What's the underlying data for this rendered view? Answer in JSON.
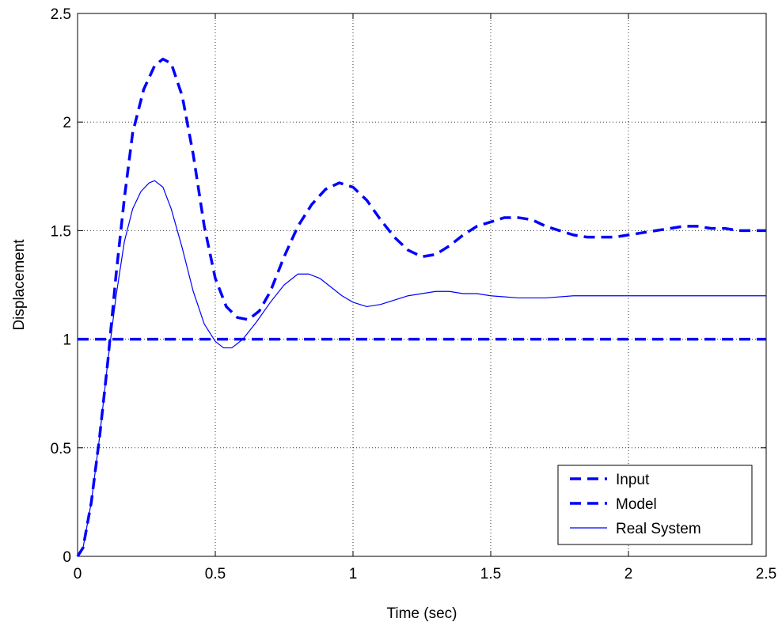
{
  "chart_data": {
    "type": "line",
    "title": "",
    "xlabel": "Time (sec)",
    "ylabel": "Displacement",
    "xlim": [
      0,
      2.5
    ],
    "ylim": [
      0,
      2.5
    ],
    "xticks": [
      0,
      0.5,
      1,
      1.5,
      2,
      2.5
    ],
    "yticks": [
      0,
      0.5,
      1,
      1.5,
      2,
      2.5
    ],
    "xtick_labels": [
      "0",
      "0.5",
      "1",
      "1.5",
      "2",
      "2.5"
    ],
    "ytick_labels": [
      "0",
      "0.5",
      "1",
      "1.5",
      "2",
      "2.5"
    ],
    "grid": true,
    "legend_position": "bottom-right",
    "series": [
      {
        "name": "Input",
        "style": "dashed",
        "color": "#0000ff",
        "points": [
          [
            0,
            1
          ],
          [
            2.5,
            1
          ]
        ]
      },
      {
        "name": "Model",
        "style": "dashed",
        "color": "#0000ff",
        "points": [
          [
            0,
            0
          ],
          [
            0.02,
            0.04
          ],
          [
            0.05,
            0.25
          ],
          [
            0.08,
            0.55
          ],
          [
            0.11,
            0.9
          ],
          [
            0.14,
            1.3
          ],
          [
            0.17,
            1.65
          ],
          [
            0.2,
            1.95
          ],
          [
            0.24,
            2.15
          ],
          [
            0.28,
            2.26
          ],
          [
            0.31,
            2.29
          ],
          [
            0.34,
            2.27
          ],
          [
            0.38,
            2.12
          ],
          [
            0.42,
            1.85
          ],
          [
            0.46,
            1.52
          ],
          [
            0.5,
            1.28
          ],
          [
            0.54,
            1.15
          ],
          [
            0.58,
            1.1
          ],
          [
            0.62,
            1.09
          ],
          [
            0.66,
            1.13
          ],
          [
            0.7,
            1.22
          ],
          [
            0.75,
            1.38
          ],
          [
            0.8,
            1.52
          ],
          [
            0.85,
            1.62
          ],
          [
            0.9,
            1.69
          ],
          [
            0.95,
            1.72
          ],
          [
            1.0,
            1.7
          ],
          [
            1.05,
            1.64
          ],
          [
            1.1,
            1.55
          ],
          [
            1.15,
            1.47
          ],
          [
            1.2,
            1.41
          ],
          [
            1.25,
            1.38
          ],
          [
            1.3,
            1.39
          ],
          [
            1.35,
            1.43
          ],
          [
            1.4,
            1.48
          ],
          [
            1.45,
            1.52
          ],
          [
            1.5,
            1.54
          ],
          [
            1.55,
            1.56
          ],
          [
            1.6,
            1.56
          ],
          [
            1.65,
            1.55
          ],
          [
            1.7,
            1.52
          ],
          [
            1.75,
            1.5
          ],
          [
            1.8,
            1.48
          ],
          [
            1.85,
            1.47
          ],
          [
            1.9,
            1.47
          ],
          [
            1.95,
            1.47
          ],
          [
            2.0,
            1.48
          ],
          [
            2.05,
            1.49
          ],
          [
            2.1,
            1.5
          ],
          [
            2.15,
            1.51
          ],
          [
            2.2,
            1.52
          ],
          [
            2.25,
            1.52
          ],
          [
            2.3,
            1.51
          ],
          [
            2.35,
            1.51
          ],
          [
            2.4,
            1.5
          ],
          [
            2.45,
            1.5
          ],
          [
            2.5,
            1.5
          ]
        ]
      },
      {
        "name": "Real System",
        "style": "solid",
        "color": "#0000ff",
        "points": [
          [
            0,
            0
          ],
          [
            0.02,
            0.04
          ],
          [
            0.05,
            0.25
          ],
          [
            0.08,
            0.55
          ],
          [
            0.11,
            0.9
          ],
          [
            0.14,
            1.2
          ],
          [
            0.17,
            1.45
          ],
          [
            0.2,
            1.6
          ],
          [
            0.23,
            1.68
          ],
          [
            0.26,
            1.72
          ],
          [
            0.28,
            1.73
          ],
          [
            0.31,
            1.7
          ],
          [
            0.34,
            1.6
          ],
          [
            0.38,
            1.42
          ],
          [
            0.42,
            1.22
          ],
          [
            0.46,
            1.07
          ],
          [
            0.5,
            0.99
          ],
          [
            0.53,
            0.96
          ],
          [
            0.56,
            0.96
          ],
          [
            0.6,
            1.0
          ],
          [
            0.65,
            1.08
          ],
          [
            0.7,
            1.17
          ],
          [
            0.75,
            1.25
          ],
          [
            0.8,
            1.3
          ],
          [
            0.84,
            1.3
          ],
          [
            0.88,
            1.28
          ],
          [
            0.92,
            1.24
          ],
          [
            0.96,
            1.2
          ],
          [
            1.0,
            1.17
          ],
          [
            1.05,
            1.15
          ],
          [
            1.1,
            1.16
          ],
          [
            1.15,
            1.18
          ],
          [
            1.2,
            1.2
          ],
          [
            1.25,
            1.21
          ],
          [
            1.3,
            1.22
          ],
          [
            1.35,
            1.22
          ],
          [
            1.4,
            1.21
          ],
          [
            1.45,
            1.21
          ],
          [
            1.5,
            1.2
          ],
          [
            1.6,
            1.19
          ],
          [
            1.7,
            1.19
          ],
          [
            1.8,
            1.2
          ],
          [
            1.9,
            1.2
          ],
          [
            2.0,
            1.2
          ],
          [
            2.1,
            1.2
          ],
          [
            2.2,
            1.2
          ],
          [
            2.3,
            1.2
          ],
          [
            2.4,
            1.2
          ],
          [
            2.5,
            1.2
          ]
        ]
      }
    ]
  }
}
